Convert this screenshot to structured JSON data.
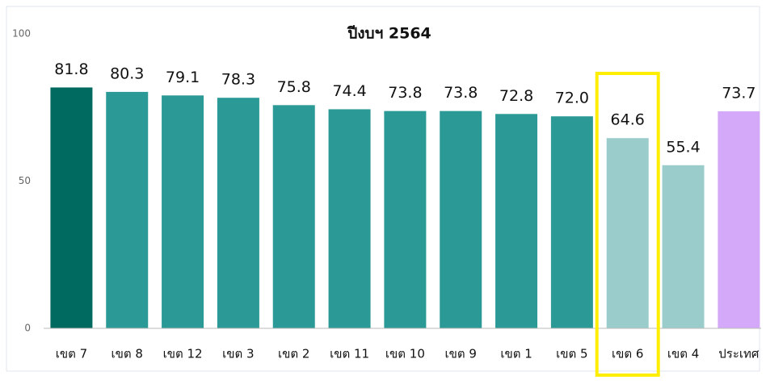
{
  "chart_data": {
    "type": "bar",
    "title": "ปีงบฯ 2564",
    "categories": [
      "เขต 7",
      "เขต 8",
      "เขต 12",
      "เขต 3",
      "เขต 2",
      "เขต 11",
      "เขต 10",
      "เขต 9",
      "เขต 1",
      "เขต 5",
      "เขต 6",
      "เขต 4",
      "ประเทศ"
    ],
    "values": [
      81.8,
      80.3,
      79.1,
      78.3,
      75.8,
      74.4,
      73.8,
      73.8,
      72.8,
      72.0,
      64.6,
      55.4,
      73.7
    ],
    "value_labels": [
      "81.8",
      "80.3",
      "79.1",
      "78.3",
      "75.8",
      "74.4",
      "73.8",
      "73.8",
      "72.8",
      "72.0",
      "64.6",
      "55.4",
      "73.7"
    ],
    "colors": [
      "#006960",
      "#2b9a96",
      "#2b9a96",
      "#2b9a96",
      "#2b9a96",
      "#2b9a96",
      "#2b9a96",
      "#2b9a96",
      "#2b9a96",
      "#2b9a96",
      "#9acccc",
      "#9acccc",
      "#d5a9f9"
    ],
    "highlight": 10,
    "ylim": [
      0,
      100
    ],
    "yticks": [
      0,
      50,
      100
    ]
  }
}
